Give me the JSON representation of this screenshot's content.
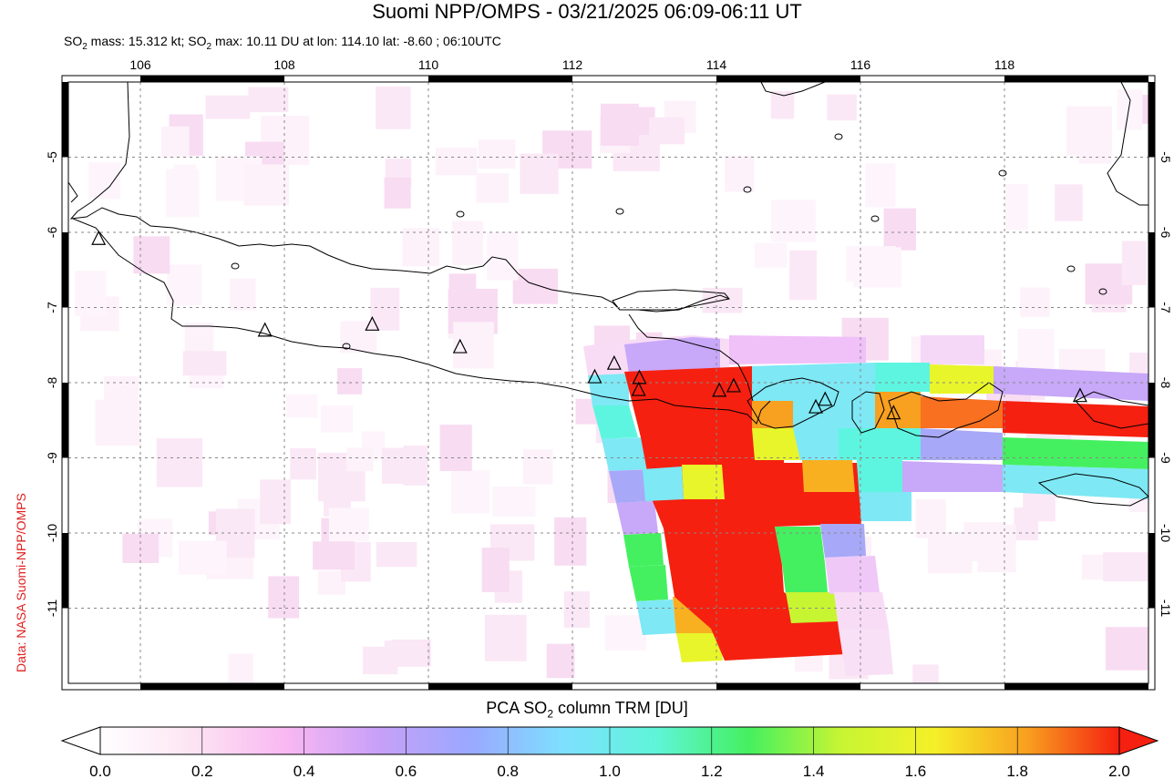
{
  "title": "Suomi NPP/OMPS - 03/21/2025 06:09-06:11 UT",
  "subtitle": {
    "mass_prefix": "SO",
    "mass_sub": "2",
    "mass_text": " mass: 15.312 kt; SO",
    "max_sub": "2",
    "max_text": " max: 10.11 DU at lon: 114.10 lat: -8.60 ; 06:10UTC"
  },
  "credit": "Data: NASA Suomi-NPP/OMPS",
  "colorbar": {
    "title_prefix": "PCA SO",
    "title_sub": "2",
    "title_suffix": " column TRM [DU]",
    "ticks": [
      "0.0",
      "0.2",
      "0.4",
      "0.6",
      "0.8",
      "1.0",
      "1.2",
      "1.4",
      "1.6",
      "1.8",
      "2.0"
    ],
    "colors": [
      "#ffffff",
      "#fde4f3",
      "#f9b8f2",
      "#c8a0f8",
      "#9aa8ff",
      "#7ee0ff",
      "#5ef5d8",
      "#44f060",
      "#c8f532",
      "#f5f028",
      "#f8a020",
      "#f52010"
    ]
  },
  "map": {
    "lon_range": [
      105.0,
      120.0
    ],
    "lat_range": [
      -12.0,
      -4.0
    ],
    "lon_ticks": [
      "106",
      "108",
      "110",
      "112",
      "114",
      "116",
      "118"
    ],
    "lat_ticks": [
      "-5",
      "-6",
      "-7",
      "-8",
      "-9",
      "-10",
      "-11"
    ],
    "volcano_markers": [
      {
        "lon": 105.42,
        "lat": -6.1
      },
      {
        "lon": 107.73,
        "lat": -7.32
      },
      {
        "lon": 109.22,
        "lat": -7.24
      },
      {
        "lon": 110.44,
        "lat": -7.54
      },
      {
        "lon": 112.31,
        "lat": -7.94
      },
      {
        "lon": 112.58,
        "lat": -7.76
      },
      {
        "lon": 112.93,
        "lat": -7.95
      },
      {
        "lon": 112.92,
        "lat": -8.11
      },
      {
        "lon": 114.04,
        "lat": -8.12
      },
      {
        "lon": 114.24,
        "lat": -8.06
      },
      {
        "lon": 115.51,
        "lat": -8.24
      },
      {
        "lon": 115.38,
        "lat": -8.34
      },
      {
        "lon": 116.46,
        "lat": -8.42
      },
      {
        "lon": 119.05,
        "lat": -8.19
      }
    ]
  }
}
